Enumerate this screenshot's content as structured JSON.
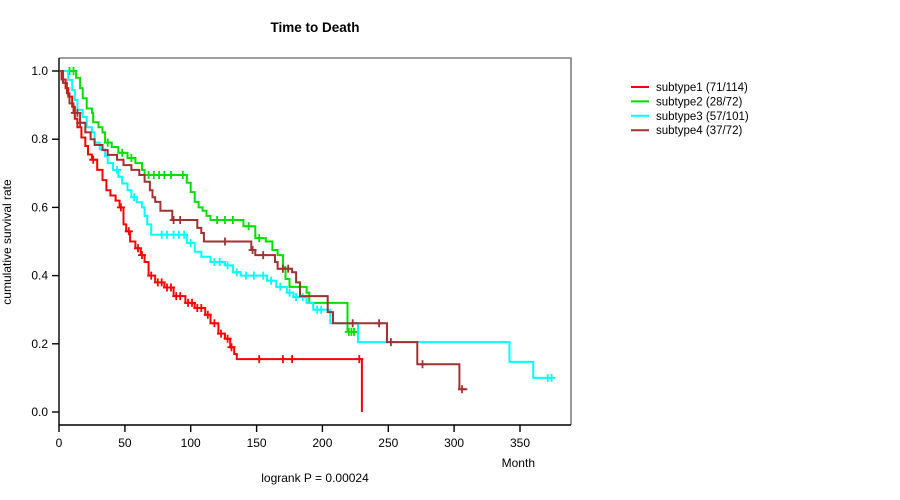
{
  "chart_data": {
    "type": "line",
    "variant": "kaplan-meier-step",
    "title": "Time to Death",
    "xlabel": "Month",
    "ylabel": "cumulative survival rate",
    "annotation": "logrank P = 0.00024",
    "x_ticks": [
      0,
      50,
      100,
      150,
      200,
      250,
      300,
      350
    ],
    "y_ticks": [
      0.0,
      0.2,
      0.4,
      0.6,
      0.8,
      1.0
    ],
    "xlim": [
      0,
      388
    ],
    "ylim": [
      0.0,
      1.0
    ],
    "grid": false,
    "legend_position": "top-right-outside",
    "axis_color": "#000000",
    "box_color": "#7f7f7f",
    "series": [
      {
        "name": "subtype1 (71/114)",
        "color": "#ff0000",
        "steps": [
          [
            0,
            1
          ],
          [
            2,
            0.975
          ],
          [
            5,
            0.95
          ],
          [
            7,
            0.925
          ],
          [
            10,
            0.895
          ],
          [
            12,
            0.86
          ],
          [
            14,
            0.835
          ],
          [
            17,
            0.805
          ],
          [
            20,
            0.78
          ],
          [
            22,
            0.755
          ],
          [
            25,
            0.74
          ],
          [
            29,
            0.71
          ],
          [
            33,
            0.68
          ],
          [
            36,
            0.65
          ],
          [
            39,
            0.635
          ],
          [
            43,
            0.62
          ],
          [
            46,
            0.6
          ],
          [
            49,
            0.55
          ],
          [
            51,
            0.53
          ],
          [
            54,
            0.5
          ],
          [
            58,
            0.48
          ],
          [
            62,
            0.46
          ],
          [
            65,
            0.44
          ],
          [
            68,
            0.4
          ],
          [
            73,
            0.38
          ],
          [
            80,
            0.365
          ],
          [
            87,
            0.34
          ],
          [
            96,
            0.32
          ],
          [
            103,
            0.305
          ],
          [
            111,
            0.285
          ],
          [
            115,
            0.26
          ],
          [
            121,
            0.23
          ],
          [
            126,
            0.215
          ],
          [
            130,
            0.19
          ],
          [
            133,
            0.17
          ],
          [
            135,
            0.155
          ],
          [
            230,
            0.155
          ],
          [
            230,
            0
          ]
        ],
        "censors": [
          26,
          47,
          53,
          60,
          63,
          70,
          75,
          78,
          82,
          85,
          89,
          92,
          98,
          101,
          105,
          108,
          113,
          118,
          123,
          128,
          131,
          152,
          170,
          177,
          228
        ]
      },
      {
        "name": "subtype2 (28/72)",
        "color": "#00e000",
        "steps": [
          [
            0,
            1
          ],
          [
            13,
            0.98
          ],
          [
            16,
            0.95
          ],
          [
            18,
            0.92
          ],
          [
            21,
            0.89
          ],
          [
            25,
            0.877
          ],
          [
            26,
            0.85
          ],
          [
            30,
            0.835
          ],
          [
            33,
            0.82
          ],
          [
            35,
            0.79
          ],
          [
            40,
            0.777
          ],
          [
            45,
            0.76
          ],
          [
            52,
            0.745
          ],
          [
            58,
            0.73
          ],
          [
            63,
            0.71
          ],
          [
            65,
            0.695
          ],
          [
            97,
            0.672
          ],
          [
            100,
            0.645
          ],
          [
            103,
            0.616
          ],
          [
            106,
            0.6
          ],
          [
            109,
            0.59
          ],
          [
            112,
            0.575
          ],
          [
            115,
            0.563
          ],
          [
            140,
            0.545
          ],
          [
            149,
            0.51
          ],
          [
            157,
            0.5
          ],
          [
            162,
            0.475
          ],
          [
            166,
            0.46
          ],
          [
            170,
            0.425
          ],
          [
            172,
            0.39
          ],
          [
            175,
            0.367
          ],
          [
            188,
            0.35
          ],
          [
            190,
            0.32
          ],
          [
            219,
            0.235
          ],
          [
            226,
            0.235
          ]
        ],
        "censors": [
          8,
          11,
          37,
          48,
          55,
          68,
          72,
          76,
          80,
          85,
          94,
          120,
          126,
          132,
          144,
          152,
          220,
          222,
          224
        ]
      },
      {
        "name": "subtype3 (57/101)",
        "color": "#00ffff",
        "steps": [
          [
            0,
            1
          ],
          [
            7,
            0.974
          ],
          [
            10,
            0.944
          ],
          [
            12,
            0.915
          ],
          [
            14,
            0.886
          ],
          [
            18,
            0.865
          ],
          [
            21,
            0.835
          ],
          [
            25,
            0.82
          ],
          [
            27,
            0.79
          ],
          [
            31,
            0.77
          ],
          [
            35,
            0.75
          ],
          [
            37,
            0.73
          ],
          [
            41,
            0.71
          ],
          [
            45,
            0.69
          ],
          [
            48,
            0.67
          ],
          [
            52,
            0.65
          ],
          [
            55,
            0.63
          ],
          [
            59,
            0.615
          ],
          [
            63,
            0.6
          ],
          [
            65,
            0.575
          ],
          [
            67,
            0.55
          ],
          [
            70,
            0.52
          ],
          [
            97,
            0.496
          ],
          [
            103,
            0.47
          ],
          [
            108,
            0.455
          ],
          [
            115,
            0.44
          ],
          [
            126,
            0.43
          ],
          [
            132,
            0.41
          ],
          [
            138,
            0.4
          ],
          [
            158,
            0.385
          ],
          [
            165,
            0.367
          ],
          [
            173,
            0.35
          ],
          [
            178,
            0.337
          ],
          [
            188,
            0.32
          ],
          [
            193,
            0.3
          ],
          [
            206,
            0.26
          ],
          [
            227,
            0.205
          ],
          [
            342,
            0.147
          ],
          [
            360,
            0.1
          ],
          [
            374,
            0.1
          ]
        ],
        "censors": [
          44,
          57,
          78,
          82,
          87,
          91,
          95,
          100,
          118,
          122,
          128,
          135,
          142,
          148,
          155,
          161,
          168,
          175,
          180,
          185,
          196,
          199,
          371,
          374
        ]
      },
      {
        "name": "subtype4 (37/72)",
        "color": "#a03232",
        "steps": [
          [
            0,
            1
          ],
          [
            3,
            0.965
          ],
          [
            6,
            0.935
          ],
          [
            8,
            0.905
          ],
          [
            11,
            0.877
          ],
          [
            16,
            0.848
          ],
          [
            20,
            0.82
          ],
          [
            24,
            0.8
          ],
          [
            27,
            0.783
          ],
          [
            33,
            0.768
          ],
          [
            37,
            0.754
          ],
          [
            44,
            0.74
          ],
          [
            49,
            0.724
          ],
          [
            55,
            0.71
          ],
          [
            61,
            0.695
          ],
          [
            65,
            0.675
          ],
          [
            69,
            0.65
          ],
          [
            71,
            0.63
          ],
          [
            73,
            0.616
          ],
          [
            77,
            0.59
          ],
          [
            86,
            0.563
          ],
          [
            105,
            0.54
          ],
          [
            108,
            0.525
          ],
          [
            110,
            0.5
          ],
          [
            146,
            0.475
          ],
          [
            149,
            0.46
          ],
          [
            164,
            0.44
          ],
          [
            166,
            0.42
          ],
          [
            177,
            0.41
          ],
          [
            180,
            0.38
          ],
          [
            183,
            0.34
          ],
          [
            204,
            0.293
          ],
          [
            208,
            0.26
          ],
          [
            249,
            0.205
          ],
          [
            272,
            0.14
          ],
          [
            304,
            0.067
          ],
          [
            310,
            0.067
          ]
        ],
        "censors": [
          12,
          14,
          16,
          87,
          92,
          126,
          147,
          155,
          170,
          174,
          223,
          243,
          252,
          276,
          306
        ]
      }
    ]
  }
}
